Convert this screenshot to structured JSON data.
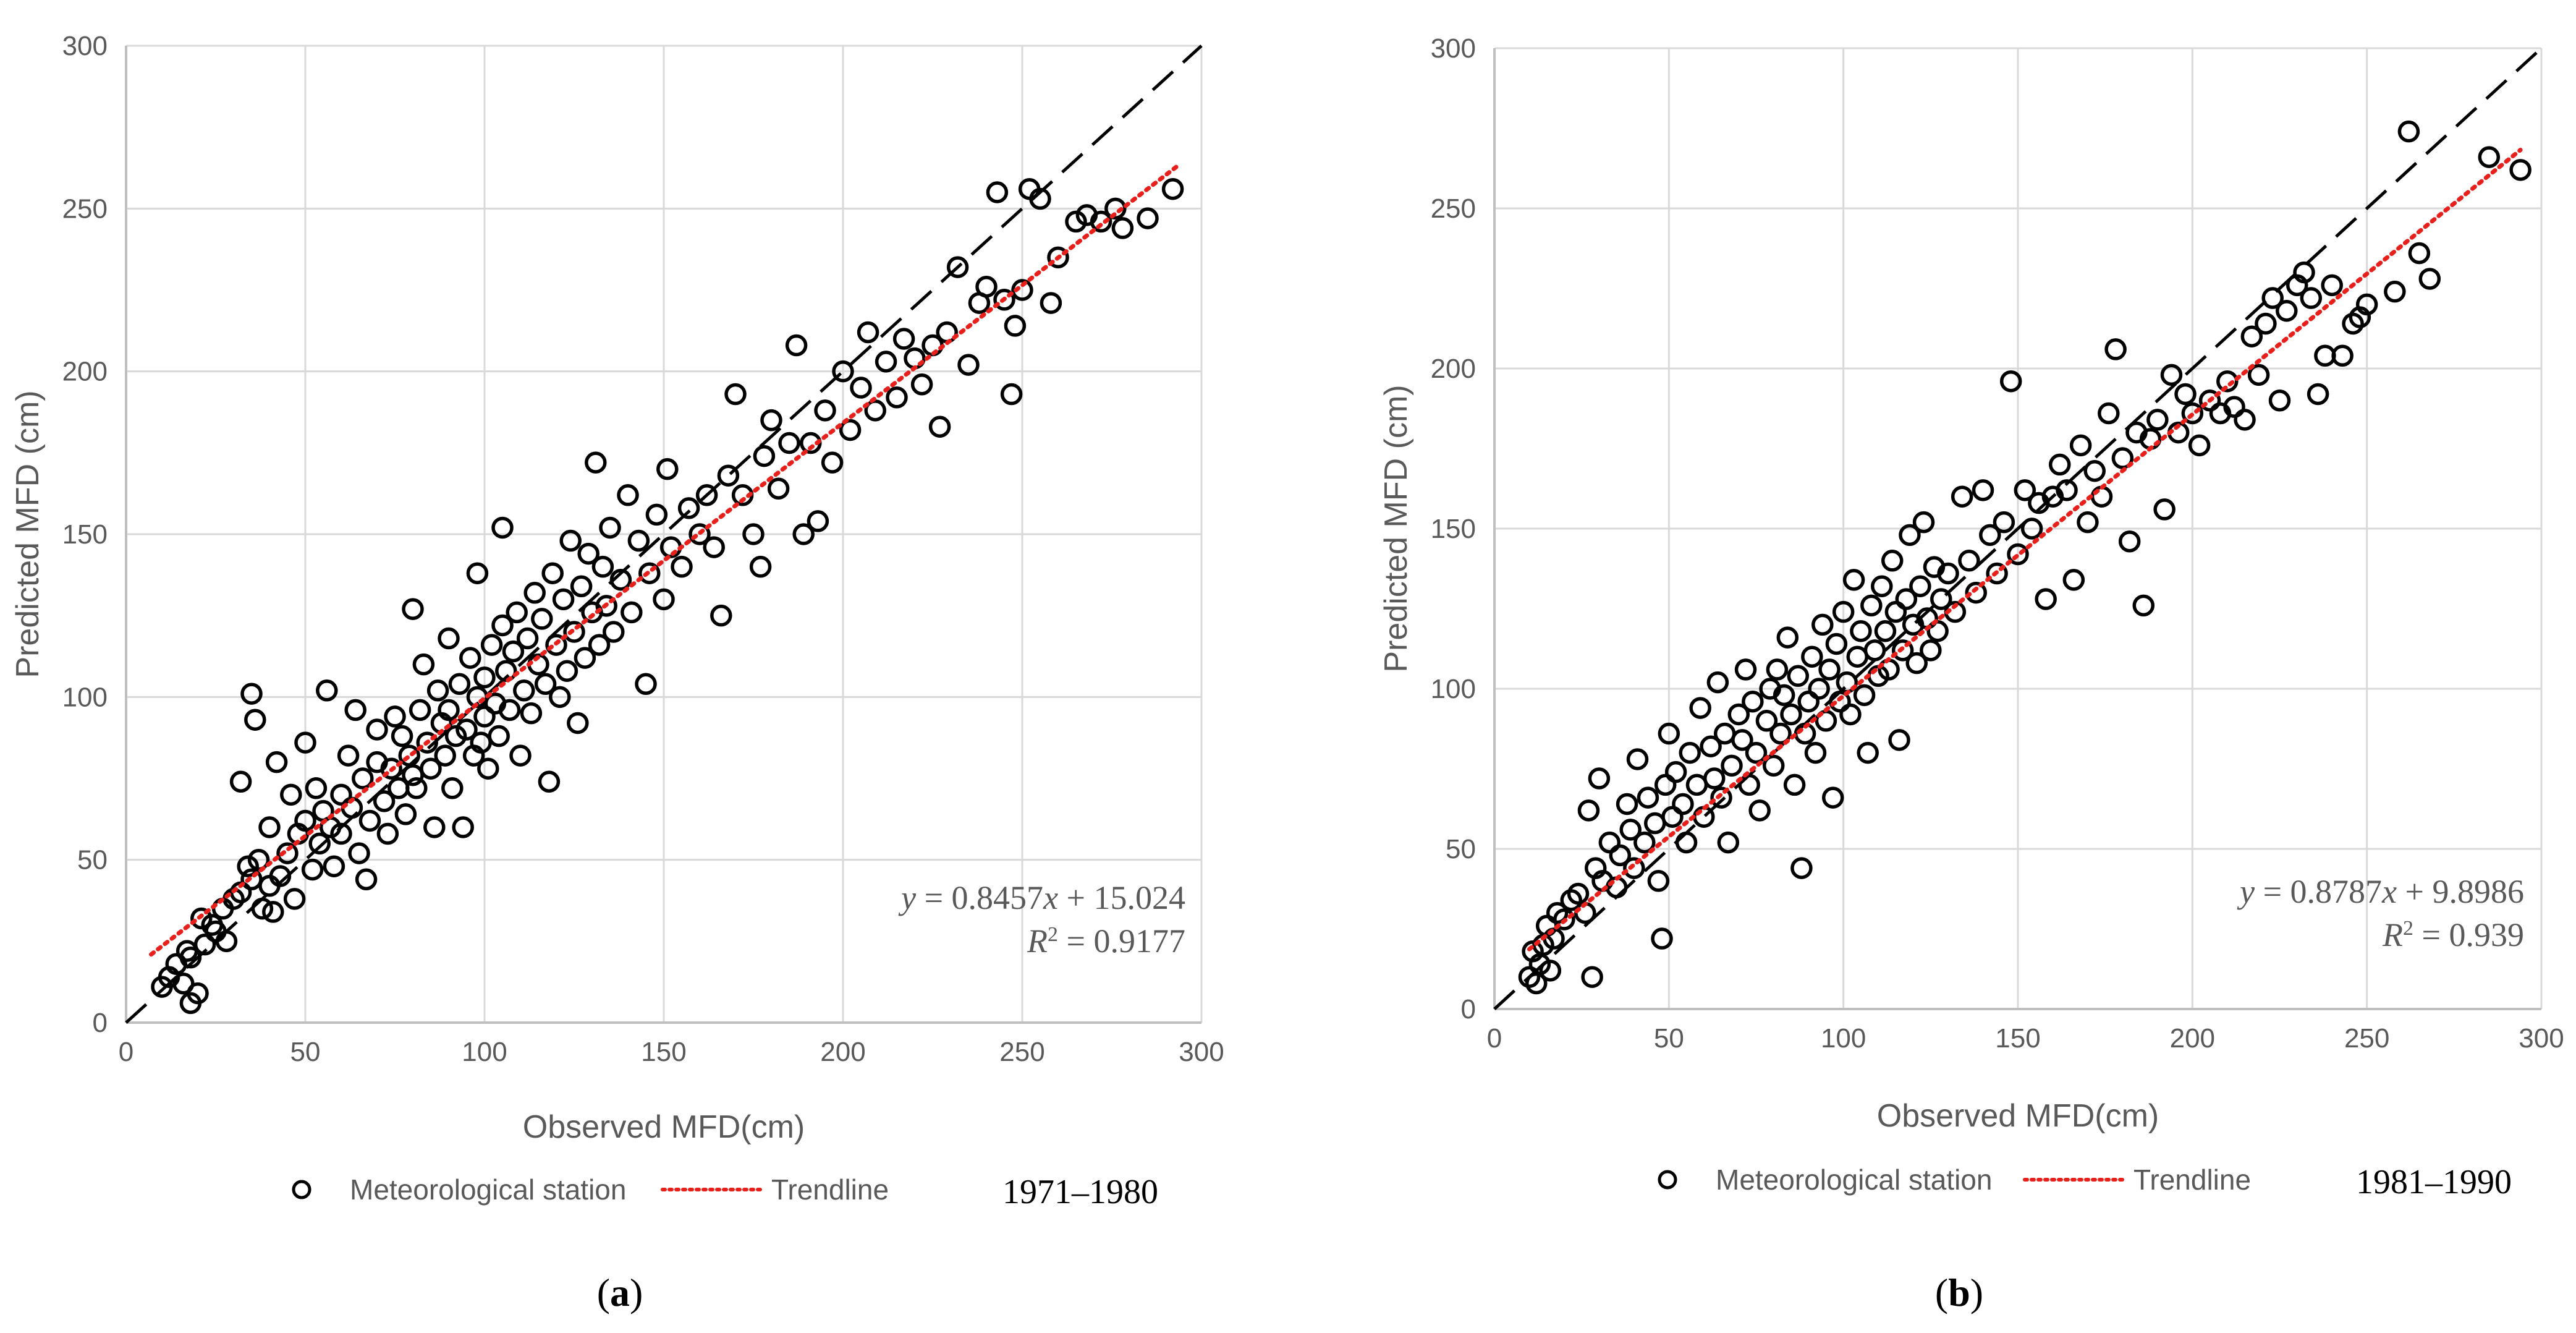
{
  "colors": {
    "marker_edge": "#000000",
    "trendline": "#e8201c",
    "identity_line": "#000000",
    "grid": "#d9d9d9",
    "text": "#595959"
  },
  "chart_data": [
    {
      "panel_label": "(a)",
      "panel_letter": "a",
      "type": "scatter",
      "xlabel": "Observed MFD(cm)",
      "ylabel": "Predicted MFD (cm)",
      "xlim": [
        0,
        300
      ],
      "ylim": [
        0,
        300
      ],
      "xticks": [
        "0",
        "50",
        "100",
        "150",
        "200",
        "250",
        "300"
      ],
      "yticks": [
        "0",
        "50",
        "100",
        "150",
        "200",
        "250",
        "300"
      ],
      "grid": true,
      "legend": {
        "marker_label": "Meteorological station",
        "line_label": "Trendline",
        "position": "bottom"
      },
      "period": "1971–1980",
      "equation": {
        "lhs": "y",
        "eq": " = 0.8457",
        "x": "x",
        "rest": " + 15.024",
        "r2_label": "R",
        "r2_exp": "2",
        "r2_value": " = 0.9177"
      },
      "trendline": {
        "slope": 0.8457,
        "intercept": 15.024,
        "x_range": [
          7,
          294
        ]
      },
      "identity_line": [
        0,
        300
      ],
      "points": [
        [
          10,
          11
        ],
        [
          12,
          14
        ],
        [
          14,
          18
        ],
        [
          16,
          12
        ],
        [
          17,
          22
        ],
        [
          18,
          20
        ],
        [
          18,
          6
        ],
        [
          20,
          9
        ],
        [
          21,
          32
        ],
        [
          22,
          24
        ],
        [
          24,
          30
        ],
        [
          25,
          28
        ],
        [
          27,
          35
        ],
        [
          28,
          25
        ],
        [
          30,
          38
        ],
        [
          32,
          40
        ],
        [
          32,
          74
        ],
        [
          34,
          48
        ],
        [
          35,
          101
        ],
        [
          35,
          44
        ],
        [
          36,
          93
        ],
        [
          37,
          50
        ],
        [
          38,
          35
        ],
        [
          40,
          42
        ],
        [
          40,
          60
        ],
        [
          41,
          34
        ],
        [
          42,
          80
        ],
        [
          43,
          45
        ],
        [
          45,
          52
        ],
        [
          46,
          70
        ],
        [
          47,
          38
        ],
        [
          48,
          58
        ],
        [
          50,
          62
        ],
        [
          50,
          86
        ],
        [
          52,
          47
        ],
        [
          53,
          72
        ],
        [
          54,
          55
        ],
        [
          55,
          65
        ],
        [
          56,
          102
        ],
        [
          57,
          60
        ],
        [
          58,
          48
        ],
        [
          60,
          70
        ],
        [
          60,
          58
        ],
        [
          62,
          82
        ],
        [
          63,
          66
        ],
        [
          64,
          96
        ],
        [
          65,
          52
        ],
        [
          66,
          75
        ],
        [
          67,
          44
        ],
        [
          68,
          62
        ],
        [
          70,
          90
        ],
        [
          70,
          80
        ],
        [
          72,
          68
        ],
        [
          73,
          58
        ],
        [
          74,
          78
        ],
        [
          75,
          94
        ],
        [
          76,
          72
        ],
        [
          77,
          88
        ],
        [
          78,
          64
        ],
        [
          79,
          82
        ],
        [
          80,
          127
        ],
        [
          80,
          76
        ],
        [
          81,
          72
        ],
        [
          82,
          96
        ],
        [
          83,
          110
        ],
        [
          84,
          86
        ],
        [
          85,
          78
        ],
        [
          86,
          60
        ],
        [
          87,
          102
        ],
        [
          88,
          92
        ],
        [
          89,
          82
        ],
        [
          90,
          118
        ],
        [
          90,
          96
        ],
        [
          91,
          72
        ],
        [
          92,
          88
        ],
        [
          93,
          104
        ],
        [
          94,
          60
        ],
        [
          95,
          90
        ],
        [
          96,
          112
        ],
        [
          97,
          82
        ],
        [
          98,
          100
        ],
        [
          98,
          138
        ],
        [
          99,
          86
        ],
        [
          100,
          106
        ],
        [
          100,
          94
        ],
        [
          101,
          78
        ],
        [
          102,
          116
        ],
        [
          103,
          98
        ],
        [
          104,
          88
        ],
        [
          105,
          152
        ],
        [
          105,
          122
        ],
        [
          106,
          108
        ],
        [
          107,
          96
        ],
        [
          108,
          114
        ],
        [
          109,
          126
        ],
        [
          110,
          82
        ],
        [
          111,
          102
        ],
        [
          112,
          118
        ],
        [
          113,
          95
        ],
        [
          114,
          132
        ],
        [
          115,
          110
        ],
        [
          116,
          124
        ],
        [
          117,
          104
        ],
        [
          118,
          74
        ],
        [
          119,
          138
        ],
        [
          120,
          116
        ],
        [
          121,
          100
        ],
        [
          122,
          130
        ],
        [
          123,
          108
        ],
        [
          124,
          148
        ],
        [
          125,
          120
        ],
        [
          126,
          92
        ],
        [
          127,
          134
        ],
        [
          128,
          112
        ],
        [
          129,
          144
        ],
        [
          130,
          126
        ],
        [
          131,
          172
        ],
        [
          132,
          116
        ],
        [
          133,
          140
        ],
        [
          134,
          128
        ],
        [
          135,
          152
        ],
        [
          136,
          120
        ],
        [
          138,
          136
        ],
        [
          140,
          162
        ],
        [
          141,
          126
        ],
        [
          143,
          148
        ],
        [
          145,
          104
        ],
        [
          146,
          138
        ],
        [
          148,
          156
        ],
        [
          150,
          130
        ],
        [
          151,
          170
        ],
        [
          152,
          146
        ],
        [
          155,
          140
        ],
        [
          157,
          158
        ],
        [
          160,
          150
        ],
        [
          162,
          162
        ],
        [
          164,
          146
        ],
        [
          166,
          125
        ],
        [
          168,
          168
        ],
        [
          170,
          193
        ],
        [
          172,
          162
        ],
        [
          175,
          150
        ],
        [
          177,
          140
        ],
        [
          178,
          174
        ],
        [
          180,
          185
        ],
        [
          182,
          164
        ],
        [
          185,
          178
        ],
        [
          187,
          208
        ],
        [
          189,
          150
        ],
        [
          191,
          178
        ],
        [
          193,
          154
        ],
        [
          195,
          188
        ],
        [
          197,
          172
        ],
        [
          200,
          200
        ],
        [
          202,
          182
        ],
        [
          205,
          195
        ],
        [
          207,
          212
        ],
        [
          209,
          188
        ],
        [
          212,
          203
        ],
        [
          215,
          192
        ],
        [
          217,
          210
        ],
        [
          220,
          204
        ],
        [
          222,
          196
        ],
        [
          225,
          208
        ],
        [
          227,
          183
        ],
        [
          229,
          212
        ],
        [
          232,
          232
        ],
        [
          235,
          202
        ],
        [
          238,
          221
        ],
        [
          240,
          226
        ],
        [
          243,
          255
        ],
        [
          245,
          222
        ],
        [
          247,
          193
        ],
        [
          248,
          214
        ],
        [
          250,
          225
        ],
        [
          252,
          256
        ],
        [
          255,
          253
        ],
        [
          258,
          221
        ],
        [
          260,
          235
        ],
        [
          265,
          246
        ],
        [
          268,
          248
        ],
        [
          272,
          246
        ],
        [
          276,
          250
        ],
        [
          278,
          244
        ],
        [
          285,
          247
        ],
        [
          292,
          256
        ]
      ]
    },
    {
      "panel_label": "(b)",
      "panel_letter": "b",
      "type": "scatter",
      "xlabel": "Observed MFD(cm)",
      "ylabel": "Predicted MFD (cm)",
      "xlim": [
        0,
        300
      ],
      "ylim": [
        0,
        300
      ],
      "xticks": [
        "0",
        "50",
        "100",
        "150",
        "200",
        "250",
        "300"
      ],
      "yticks": [
        "0",
        "50",
        "100",
        "150",
        "200",
        "250",
        "300"
      ],
      "grid": true,
      "legend": {
        "marker_label": "Meteorological station",
        "line_label": "Trendline",
        "position": "bottom"
      },
      "period": "1981–1990",
      "equation": {
        "lhs": "y",
        "eq": " = 0.8787",
        "x": "x",
        "rest": " + 9.8986",
        "r2_label": "R",
        "r2_exp": "2",
        "r2_value": " = 0.939"
      },
      "trendline": {
        "slope": 0.8787,
        "intercept": 9.8986,
        "x_range": [
          10,
          294
        ]
      },
      "identity_line": [
        0,
        300
      ],
      "points": [
        [
          10,
          10
        ],
        [
          11,
          18
        ],
        [
          12,
          8
        ],
        [
          13,
          14
        ],
        [
          14,
          20
        ],
        [
          15,
          26
        ],
        [
          16,
          12
        ],
        [
          17,
          22
        ],
        [
          18,
          30
        ],
        [
          20,
          28
        ],
        [
          22,
          34
        ],
        [
          24,
          36
        ],
        [
          26,
          30
        ],
        [
          27,
          62
        ],
        [
          28,
          10
        ],
        [
          29,
          44
        ],
        [
          30,
          72
        ],
        [
          31,
          40
        ],
        [
          33,
          52
        ],
        [
          35,
          38
        ],
        [
          36,
          48
        ],
        [
          38,
          64
        ],
        [
          39,
          56
        ],
        [
          40,
          44
        ],
        [
          41,
          78
        ],
        [
          43,
          52
        ],
        [
          44,
          66
        ],
        [
          46,
          58
        ],
        [
          47,
          40
        ],
        [
          48,
          22
        ],
        [
          49,
          70
        ],
        [
          50,
          86
        ],
        [
          51,
          60
        ],
        [
          52,
          74
        ],
        [
          54,
          64
        ],
        [
          55,
          52
        ],
        [
          56,
          80
        ],
        [
          58,
          70
        ],
        [
          59,
          94
        ],
        [
          60,
          60
        ],
        [
          62,
          82
        ],
        [
          63,
          72
        ],
        [
          64,
          102
        ],
        [
          65,
          66
        ],
        [
          66,
          86
        ],
        [
          67,
          52
        ],
        [
          68,
          76
        ],
        [
          70,
          92
        ],
        [
          71,
          84
        ],
        [
          72,
          106
        ],
        [
          73,
          70
        ],
        [
          74,
          96
        ],
        [
          75,
          80
        ],
        [
          76,
          62
        ],
        [
          78,
          90
        ],
        [
          79,
          100
        ],
        [
          80,
          76
        ],
        [
          81,
          106
        ],
        [
          82,
          86
        ],
        [
          83,
          98
        ],
        [
          84,
          116
        ],
        [
          85,
          92
        ],
        [
          86,
          70
        ],
        [
          87,
          104
        ],
        [
          88,
          44
        ],
        [
          89,
          86
        ],
        [
          90,
          96
        ],
        [
          91,
          110
        ],
        [
          92,
          80
        ],
        [
          93,
          100
        ],
        [
          94,
          120
        ],
        [
          95,
          90
        ],
        [
          96,
          106
        ],
        [
          97,
          66
        ],
        [
          98,
          114
        ],
        [
          99,
          96
        ],
        [
          100,
          124
        ],
        [
          101,
          102
        ],
        [
          102,
          92
        ],
        [
          103,
          134
        ],
        [
          104,
          110
        ],
        [
          105,
          118
        ],
        [
          106,
          98
        ],
        [
          107,
          80
        ],
        [
          108,
          126
        ],
        [
          109,
          112
        ],
        [
          110,
          104
        ],
        [
          111,
          132
        ],
        [
          112,
          118
        ],
        [
          113,
          106
        ],
        [
          114,
          140
        ],
        [
          115,
          124
        ],
        [
          116,
          84
        ],
        [
          117,
          112
        ],
        [
          118,
          128
        ],
        [
          119,
          148
        ],
        [
          120,
          120
        ],
        [
          121,
          108
        ],
        [
          122,
          132
        ],
        [
          123,
          152
        ],
        [
          124,
          122
        ],
        [
          125,
          112
        ],
        [
          126,
          138
        ],
        [
          127,
          118
        ],
        [
          128,
          128
        ],
        [
          130,
          136
        ],
        [
          132,
          124
        ],
        [
          134,
          160
        ],
        [
          136,
          140
        ],
        [
          138,
          130
        ],
        [
          140,
          162
        ],
        [
          142,
          148
        ],
        [
          144,
          136
        ],
        [
          146,
          152
        ],
        [
          148,
          196
        ],
        [
          150,
          142
        ],
        [
          152,
          162
        ],
        [
          154,
          150
        ],
        [
          156,
          158
        ],
        [
          158,
          128
        ],
        [
          160,
          160
        ],
        [
          162,
          170
        ],
        [
          164,
          162
        ],
        [
          166,
          134
        ],
        [
          168,
          176
        ],
        [
          170,
          152
        ],
        [
          172,
          168
        ],
        [
          174,
          160
        ],
        [
          176,
          186
        ],
        [
          178,
          206
        ],
        [
          180,
          172
        ],
        [
          182,
          146
        ],
        [
          184,
          180
        ],
        [
          186,
          126
        ],
        [
          188,
          178
        ],
        [
          190,
          184
        ],
        [
          192,
          156
        ],
        [
          194,
          198
        ],
        [
          196,
          180
        ],
        [
          198,
          192
        ],
        [
          200,
          186
        ],
        [
          202,
          176
        ],
        [
          205,
          190
        ],
        [
          208,
          186
        ],
        [
          210,
          196
        ],
        [
          212,
          188
        ],
        [
          215,
          184
        ],
        [
          217,
          210
        ],
        [
          219,
          198
        ],
        [
          221,
          214
        ],
        [
          223,
          222
        ],
        [
          225,
          190
        ],
        [
          227,
          218
        ],
        [
          230,
          226
        ],
        [
          232,
          230
        ],
        [
          234,
          222
        ],
        [
          236,
          192
        ],
        [
          238,
          204
        ],
        [
          240,
          226
        ],
        [
          243,
          204
        ],
        [
          246,
          214
        ],
        [
          248,
          216
        ],
        [
          250,
          220
        ],
        [
          258,
          224
        ],
        [
          262,
          274
        ],
        [
          265,
          236
        ],
        [
          268,
          228
        ],
        [
          285,
          266
        ],
        [
          294,
          262
        ]
      ]
    }
  ]
}
